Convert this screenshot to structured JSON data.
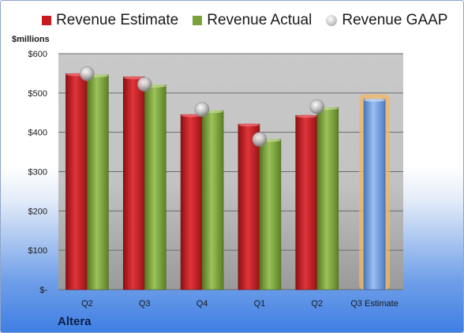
{
  "chart_data": {
    "type": "bar",
    "units_label": "$millions",
    "company": "Altera",
    "categories": [
      "Q2",
      "Q3",
      "Q4",
      "Q1",
      "Q2",
      "Q3 Estimate"
    ],
    "series": [
      {
        "name": "Revenue Estimate",
        "values": [
          549,
          541,
          445,
          421,
          443,
          null
        ],
        "color": "#c8191e"
      },
      {
        "name": "Revenue Actual",
        "values": [
          546,
          520,
          455,
          382,
          463,
          484
        ],
        "color": "#7aa23b"
      },
      {
        "name": "Revenue GAAP",
        "values": [
          549,
          522,
          458,
          382,
          465,
          null
        ],
        "color": "#b8b8b8"
      }
    ],
    "estimate_bar_color": "#6f9ad6",
    "ylim": [
      0,
      600
    ],
    "yticks": [
      "$-",
      "$100",
      "$200",
      "$300",
      "$400",
      "$500",
      "$600"
    ],
    "grid": true,
    "legend_position": "top"
  }
}
